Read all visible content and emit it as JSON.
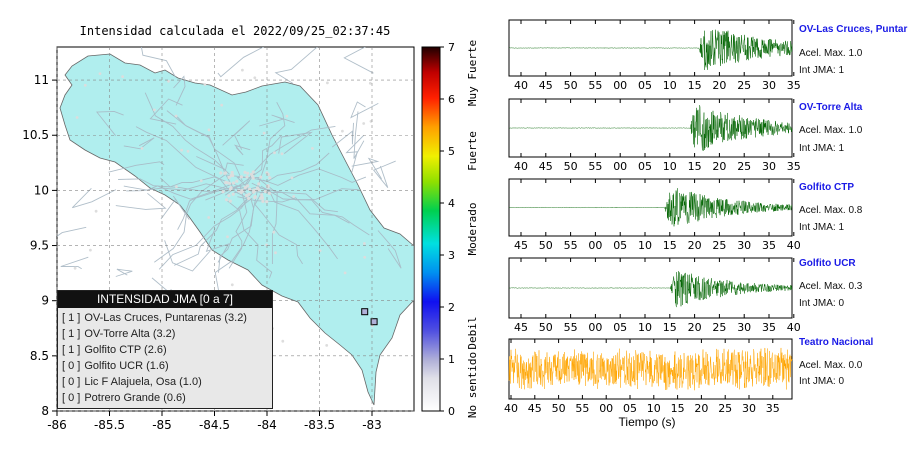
{
  "map": {
    "title": "Intensidad calculada el 2022/09/25_02:37:45",
    "lat_ticks": [
      "11",
      "10.5",
      "10",
      "9.5",
      "9",
      "8.5",
      "8"
    ],
    "lon_ticks": [
      "-86",
      "-85.5",
      "-85",
      "-84.5",
      "-84",
      "-83.5",
      "-83"
    ],
    "lat_range": [
      8.0,
      11.3
    ],
    "lon_range": [
      -86.0,
      -82.6
    ],
    "land_color": "#b0eeee",
    "stations": [
      {
        "lat": 8.9,
        "lon": -83.07,
        "intensity": 1
      },
      {
        "lat": 8.81,
        "lon": -82.98,
        "intensity": 1
      }
    ]
  },
  "colorbar": {
    "ticks": [
      "0",
      "1",
      "2",
      "3",
      "4",
      "5",
      "6",
      "7"
    ],
    "labels": [
      "No sentido",
      "Debil",
      "Moderado",
      "Fuerte",
      "Muy Fuerte"
    ]
  },
  "legend": {
    "title": "INTENSIDAD JMA [0 a 7]",
    "rows": [
      {
        "jma": "[ 1 ]",
        "text": "OV-Las Cruces, Puntarenas (3.2)"
      },
      {
        "jma": "[ 1 ]",
        "text": "OV-Torre Alta (3.2)"
      },
      {
        "jma": "[ 1 ]",
        "text": "Golfito CTP (2.6)"
      },
      {
        "jma": "[ 0 ]",
        "text": "Golfito UCR (1.6)"
      },
      {
        "jma": "[ 0 ]",
        "text": "Lic F Alajuela, Osa (1.0)"
      },
      {
        "jma": "[ 0 ]",
        "text": "Potrero Grande (0.6)"
      }
    ]
  },
  "traces": {
    "xlabel": "Tiempo (s)",
    "tick_sets": [
      [
        "40",
        "45",
        "50",
        "55",
        "00",
        "05",
        "10",
        "15",
        "20",
        "25",
        "30",
        "35"
      ],
      [
        "40",
        "45",
        "50",
        "55",
        "00",
        "05",
        "10",
        "15",
        "20",
        "25",
        "30",
        "35"
      ],
      [
        "45",
        "50",
        "55",
        "00",
        "05",
        "10",
        "15",
        "20",
        "25",
        "30",
        "35",
        "40"
      ],
      [
        "45",
        "50",
        "55",
        "00",
        "05",
        "10",
        "15",
        "20",
        "25",
        "30",
        "35",
        "40"
      ],
      [
        "40",
        "45",
        "50",
        "55",
        "00",
        "05",
        "10",
        "15",
        "20",
        "25",
        "30",
        "35"
      ]
    ],
    "stations": [
      {
        "name": "OV-Las Cruces, Puntar",
        "acel": "Acel. Max. 1.0",
        "int": "Int JMA: 1",
        "color": "#006400"
      },
      {
        "name": "OV-Torre Alta",
        "acel": "Acel. Max. 1.0",
        "int": "Int JMA: 1",
        "color": "#006400"
      },
      {
        "name": "Golfito CTP",
        "acel": "Acel. Max. 0.8",
        "int": "Int JMA: 1",
        "color": "#006400"
      },
      {
        "name": "Golfito UCR",
        "acel": "Acel. Max. 0.3",
        "int": "Int JMA: 0",
        "color": "#006400"
      },
      {
        "name": "Teatro Nacional",
        "acel": "Acel. Max. 0.0",
        "int": "Int JMA: 0",
        "color": "#ffa500"
      }
    ]
  },
  "chart_data": [
    {
      "type": "scatter",
      "title": "Intensidad calculada el 2022/09/25_02:37:45",
      "xlim": [
        -86.0,
        -82.6
      ],
      "ylim": [
        8.0,
        11.3
      ],
      "points": [
        {
          "x": -83.07,
          "y": 8.9,
          "jma": 1
        },
        {
          "x": -82.98,
          "y": 8.81,
          "jma": 1
        }
      ],
      "legend": "bottom-left"
    },
    {
      "type": "line",
      "xlabel": "Tiempo (s)",
      "series": [
        {
          "name": "OV-Las Cruces, Puntar",
          "acel_max": 1.0,
          "int_jma": 1,
          "onset": "17"
        },
        {
          "name": "OV-Torre Alta",
          "acel_max": 1.0,
          "int_jma": 1,
          "onset": "17"
        },
        {
          "name": "Golfito CTP",
          "acel_max": 0.8,
          "int_jma": 1,
          "onset": "16"
        },
        {
          "name": "Golfito UCR",
          "acel_max": 0.3,
          "int_jma": 0,
          "onset": "15"
        },
        {
          "name": "Teatro Nacional",
          "acel_max": 0.0,
          "int_jma": 0
        }
      ]
    }
  ]
}
